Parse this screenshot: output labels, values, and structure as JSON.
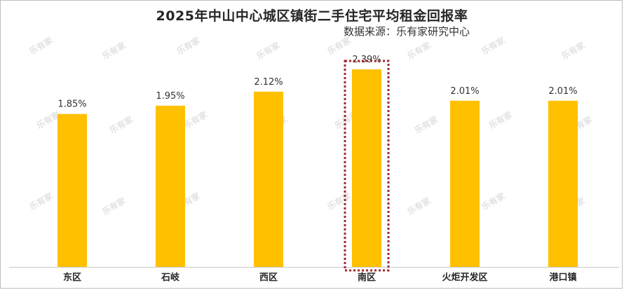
{
  "chart_data": {
    "type": "bar",
    "title": "2025年中山中心城区镇街二手住宅平均租金回报率",
    "source": "数据来源：乐有家研究中心",
    "categories": [
      "东区",
      "石岐",
      "西区",
      "南区",
      "火炬开发区",
      "港口镇"
    ],
    "values": [
      1.85,
      1.95,
      2.12,
      2.39,
      2.01,
      2.01
    ],
    "data_labels": [
      "1.85%",
      "1.95%",
      "2.12%",
      "2.39%",
      "2.01%",
      "2.01%"
    ],
    "ylim": [
      0,
      2.5
    ],
    "xlabel": "",
    "ylabel": "",
    "highlighted_category": "南区",
    "grid": false,
    "watermark": "乐有家",
    "colors": {
      "bar": "#FFC000",
      "highlight_border": "#A0282D",
      "axis": "#c8c8c8",
      "watermark": "#e2e2e2"
    }
  }
}
